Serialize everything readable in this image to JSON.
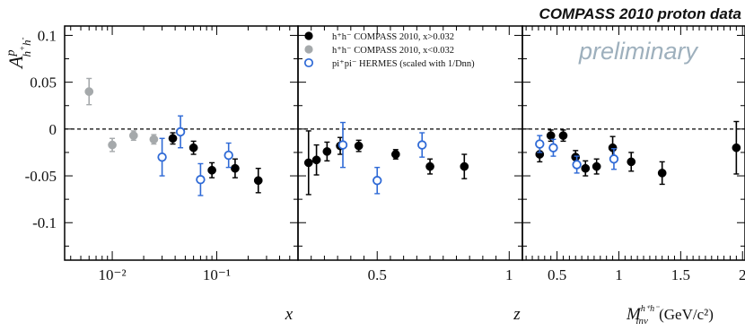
{
  "title": "COMPASS 2010 proton data",
  "preliminary": "preliminary",
  "ylabel": {
    "base": "A",
    "sup": "p",
    "sub_main": "h",
    "sub_sup1": "+",
    "sub_main2": "h",
    "sub_sup2": "-"
  },
  "colors": {
    "black": "#000000",
    "grey": "#a5a9ab",
    "blue": "#2f6ad6",
    "prelim": "#9eb0bd"
  },
  "legend": [
    {
      "marker": "black-filled",
      "text": "h⁺h⁻ COMPASS 2010, x>0.032"
    },
    {
      "marker": "grey-filled",
      "text": "h⁺h⁻ COMPASS 2010, x<0.032"
    },
    {
      "marker": "blue-open",
      "text": "pi⁺pi⁻ HERMES (scaled with 1/Dnn)"
    }
  ],
  "chart_data": {
    "type": "scatter",
    "ylim": [
      -0.14,
      0.11
    ],
    "yticks": [
      "0.1",
      "0.05",
      "0",
      "-0.05",
      "-0.1"
    ],
    "y_values": [
      0.1,
      0.05,
      0,
      -0.05,
      -0.1
    ],
    "zero_line": "dashed",
    "panels": [
      {
        "name": "x",
        "xlabel": "x",
        "xscale": "log",
        "xlim": [
          0.0035,
          0.6
        ],
        "xtick_labels": [
          "10⁻²",
          "10⁻¹"
        ],
        "xtick_values": [
          0.01,
          0.1
        ],
        "series": [
          {
            "name": "h⁺h⁻ COMPASS 2010, x<0.032",
            "style": "grey-filled",
            "x": [
              0.006,
              0.01,
              0.016,
              0.025
            ],
            "y": [
              0.04,
              -0.017,
              -0.007,
              -0.011
            ],
            "err": [
              0.014,
              0.007,
              0.005,
              0.005
            ]
          },
          {
            "name": "h⁺h⁻ COMPASS 2010, x>0.032",
            "style": "black-filled",
            "x": [
              0.038,
              0.06,
              0.09,
              0.15,
              0.25
            ],
            "y": [
              -0.01,
              -0.02,
              -0.044,
              -0.042,
              -0.055
            ],
            "err": [
              0.006,
              0.007,
              0.008,
              0.01,
              0.013
            ]
          },
          {
            "name": "pi⁺pi⁻ HERMES (scaled with 1/Dnn)",
            "style": "blue-open",
            "x": [
              0.03,
              0.045,
              0.07,
              0.13
            ],
            "y": [
              -0.03,
              -0.003,
              -0.054,
              -0.028
            ],
            "err": [
              0.02,
              0.017,
              0.017,
              0.013
            ]
          }
        ]
      },
      {
        "name": "z",
        "xlabel": "z",
        "xscale": "linear",
        "xlim": [
          0.2,
          1.05
        ],
        "xtick_labels": [
          "0.5",
          "1"
        ],
        "xtick_values": [
          0.5,
          1
        ],
        "series": [
          {
            "name": "h⁺h⁻ COMPASS 2010, x>0.032",
            "style": "black-filled",
            "x": [
              0.24,
              0.27,
              0.31,
              0.36,
              0.43,
              0.57,
              0.7,
              0.83
            ],
            "y": [
              -0.036,
              -0.033,
              -0.024,
              -0.018,
              -0.018,
              -0.027,
              -0.04,
              -0.04
            ],
            "err": [
              0.034,
              0.016,
              0.01,
              0.009,
              0.006,
              0.005,
              0.008,
              0.013
            ]
          },
          {
            "name": "pi⁺pi⁻ HERMES (scaled with 1/Dnn)",
            "style": "blue-open",
            "x": [
              0.37,
              0.5,
              0.67
            ],
            "y": [
              -0.017,
              -0.055,
              -0.017
            ],
            "err": [
              0.024,
              0.014,
              0.013
            ]
          }
        ]
      },
      {
        "name": "M",
        "xlabel": "M",
        "xlabel_sup": "h⁺h⁻",
        "xlabel_sub": "inv",
        "xlabel_units": "(GeV/c²)",
        "xscale": "linear",
        "xlim": [
          0.22,
          2.02
        ],
        "xtick_labels": [
          "0.5",
          "1",
          "1.5",
          "2"
        ],
        "xtick_values": [
          0.5,
          1,
          1.5,
          2
        ],
        "series": [
          {
            "name": "h⁺h⁻ COMPASS 2010, x>0.032",
            "style": "black-filled",
            "x": [
              0.36,
              0.45,
              0.55,
              0.65,
              0.73,
              0.82,
              0.95,
              1.1,
              1.35,
              1.95
            ],
            "y": [
              -0.027,
              -0.007,
              -0.007,
              -0.03,
              -0.042,
              -0.04,
              -0.02,
              -0.035,
              -0.047,
              -0.02
            ],
            "err": [
              0.008,
              0.006,
              0.006,
              0.007,
              0.008,
              0.008,
              0.012,
              0.01,
              0.012,
              0.028
            ]
          },
          {
            "name": "pi⁺pi⁻ HERMES (scaled with 1/Dnn)",
            "style": "blue-open",
            "x": [
              0.36,
              0.47,
              0.66,
              0.96
            ],
            "y": [
              -0.016,
              -0.02,
              -0.038,
              -0.032
            ],
            "err": [
              0.009,
              0.009,
              0.009,
              0.011
            ]
          }
        ]
      }
    ]
  }
}
